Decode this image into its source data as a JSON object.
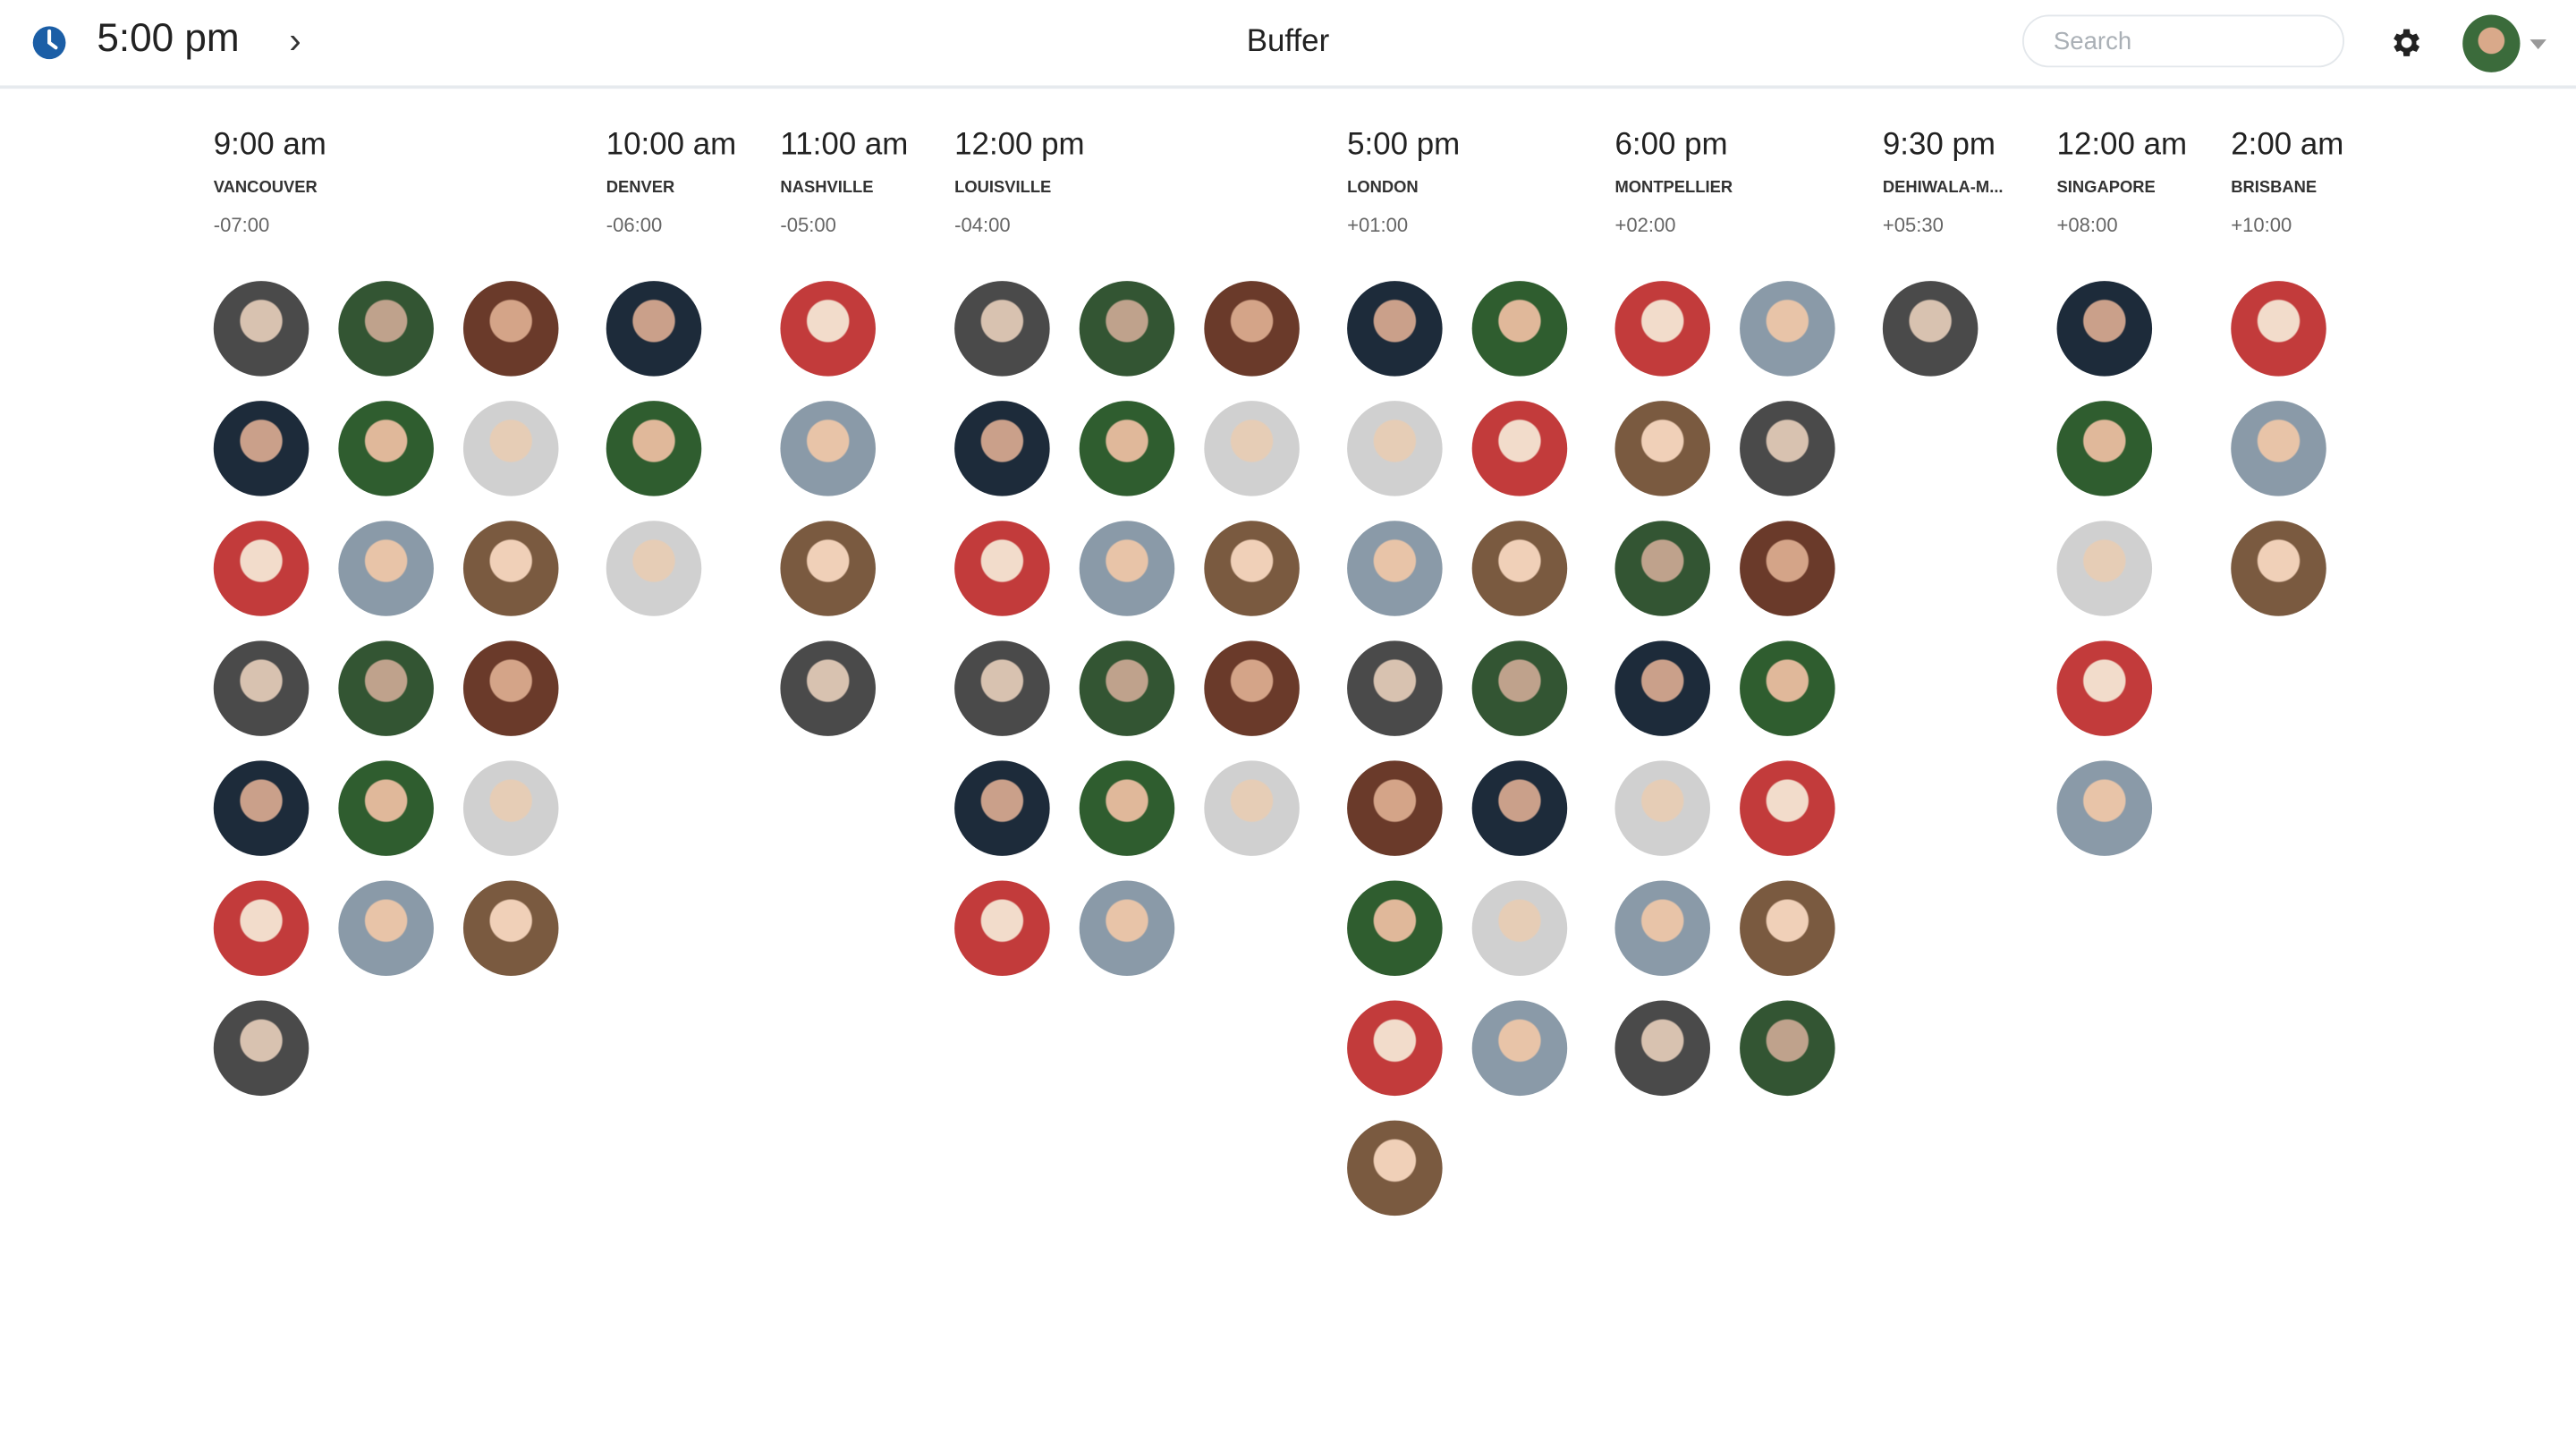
{
  "header": {
    "current_time": "5:00 pm",
    "title": "Buffer",
    "search_placeholder": "Search",
    "accent": "#1b5ea6"
  },
  "timezones": [
    {
      "time": "9:00 am",
      "city": "VANCOUVER",
      "offset": "-07:00",
      "member_count": 19,
      "per_row": 3
    },
    {
      "time": "10:00 am",
      "city": "DENVER",
      "offset": "-06:00",
      "member_count": 3,
      "per_row": 1
    },
    {
      "time": "11:00 am",
      "city": "NASHVILLE",
      "offset": "-05:00",
      "member_count": 4,
      "per_row": 1
    },
    {
      "time": "12:00 pm",
      "city": "LOUISVILLE",
      "offset": "-04:00",
      "member_count": 17,
      "per_row": 3
    },
    {
      "time": "5:00 pm",
      "city": "LONDON",
      "offset": "+01:00",
      "member_count": 15,
      "per_row": 2
    },
    {
      "time": "6:00 pm",
      "city": "MONTPELLIER",
      "offset": "+02:00",
      "member_count": 14,
      "per_row": 2
    },
    {
      "time": "9:30 pm",
      "city": "DEHIWALA-M...",
      "offset": "+05:30",
      "member_count": 1,
      "per_row": 1
    },
    {
      "time": "12:00 am",
      "city": "SINGAPORE",
      "offset": "+08:00",
      "member_count": 5,
      "per_row": 1
    },
    {
      "time": "2:00 am",
      "city": "BRISBANE",
      "offset": "+10:00",
      "member_count": 3,
      "per_row": 1
    }
  ]
}
